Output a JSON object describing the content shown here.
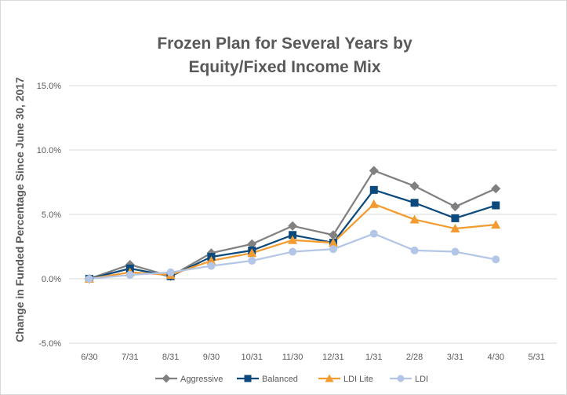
{
  "chart_data": {
    "type": "line",
    "title_lines": [
      "Frozen Plan for Several Years by",
      "Equity/Fixed Income Mix"
    ],
    "ylabel": "Change in Funded Percentage Since June 30, 2017",
    "xlabel": "",
    "categories": [
      "6/30",
      "7/31",
      "8/31",
      "9/30",
      "10/31",
      "11/30",
      "12/31",
      "1/31",
      "2/28",
      "3/31",
      "4/30",
      "5/31"
    ],
    "yticks": [
      "15.0%",
      "10.0%",
      "5.0%",
      "0.0%",
      "-5.0%"
    ],
    "ylim": [
      -5,
      15
    ],
    "grid": true,
    "legend_position": "bottom",
    "series": [
      {
        "name": "Aggressive",
        "color": "#808080",
        "marker": "diamond",
        "values": [
          0.0,
          1.1,
          0.2,
          2.0,
          2.7,
          4.1,
          3.4,
          8.4,
          7.2,
          5.6,
          7.0,
          null
        ]
      },
      {
        "name": "Balanced",
        "color": "#0c4a7d",
        "marker": "square",
        "values": [
          0.0,
          0.8,
          0.2,
          1.7,
          2.2,
          3.4,
          2.8,
          6.9,
          5.9,
          4.7,
          5.7,
          null
        ]
      },
      {
        "name": "LDI Lite",
        "color": "#f29b30",
        "marker": "triangle",
        "values": [
          0.0,
          0.5,
          0.3,
          1.4,
          2.0,
          3.0,
          2.8,
          5.8,
          4.6,
          3.9,
          4.2,
          null
        ]
      },
      {
        "name": "LDI",
        "color": "#b4c6e7",
        "marker": "circle",
        "values": [
          0.0,
          0.3,
          0.5,
          1.0,
          1.4,
          2.1,
          2.3,
          3.5,
          2.2,
          2.1,
          1.5,
          null
        ]
      }
    ]
  }
}
